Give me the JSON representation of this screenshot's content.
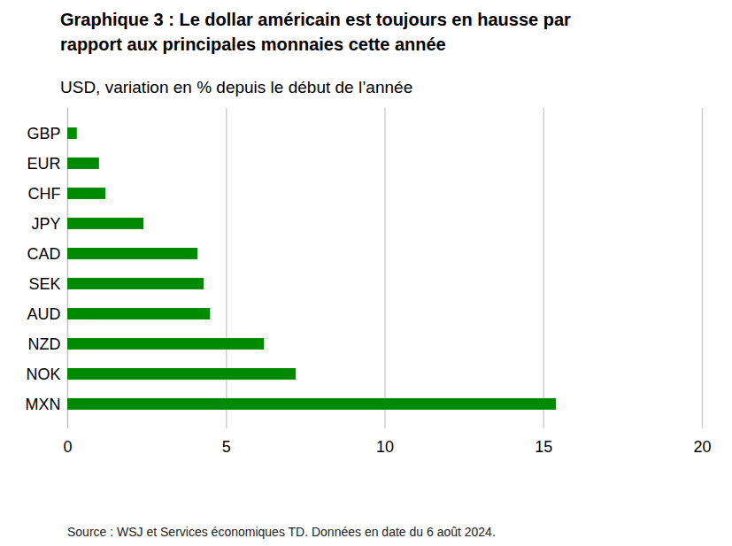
{
  "chart_data": {
    "type": "bar",
    "title": "Graphique 3 : Le dollar américain est toujours en hausse par rapport aux principales monnaies cette année",
    "subtitle": "USD, variation en % depuis le début de l’année",
    "caption": "Source : WSJ et Services économiques TD. Données en date du 6 août 2024.",
    "orientation": "horizontal",
    "categories": [
      "GBP",
      "EUR",
      "CHF",
      "JPY",
      "CAD",
      "SEK",
      "AUD",
      "NZD",
      "NOK",
      "MXN"
    ],
    "values": [
      0.3,
      1.0,
      1.2,
      2.4,
      4.1,
      4.3,
      4.5,
      6.2,
      7.2,
      15.4
    ],
    "color": "#008a00",
    "xlim": [
      0,
      20
    ],
    "xticks": [
      0,
      5,
      10,
      15,
      20
    ],
    "grid": true
  }
}
